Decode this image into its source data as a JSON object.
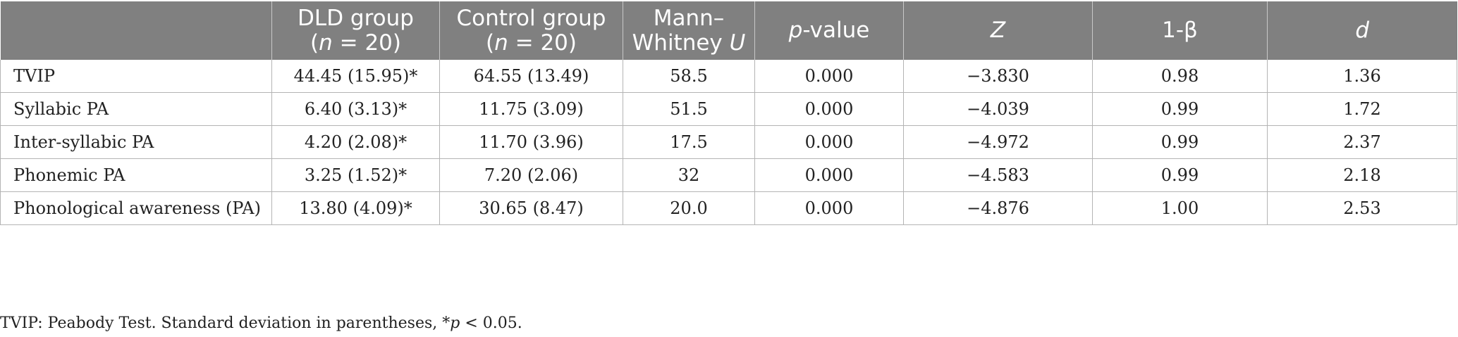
{
  "header": {
    "c0": "",
    "c1_line1": "DLD group",
    "c1_line2_var": "n",
    "c1_line2_rest": " = 20)",
    "c1_line2_open": "(",
    "c2_line1": "Control group",
    "c2_line2_open": "(",
    "c2_line2_var": "n",
    "c2_line2_rest": " = 20)",
    "c3_line1": "Mann–",
    "c3_line2_text": "Whitney ",
    "c3_line2_var": "U",
    "c4_var": "p",
    "c4_rest": "-value",
    "c5": "Z",
    "c6": "1-β",
    "c7": "d"
  },
  "rows": [
    {
      "label": "TVIP",
      "dld": "44.45 (15.95)*",
      "control": "64.55 (13.49)",
      "u": "58.5",
      "p": "0.000",
      "z": "−3.830",
      "power": "0.98",
      "d": "1.36"
    },
    {
      "label": "Syllabic PA",
      "dld": "6.40 (3.13)*",
      "control": "11.75 (3.09)",
      "u": "51.5",
      "p": "0.000",
      "z": "−4.039",
      "power": "0.99",
      "d": "1.72"
    },
    {
      "label": "Inter-syllabic PA",
      "dld": "4.20 (2.08)*",
      "control": "11.70 (3.96)",
      "u": "17.5",
      "p": "0.000",
      "z": "−4.972",
      "power": "0.99",
      "d": "2.37"
    },
    {
      "label": "Phonemic PA",
      "dld": "3.25 (1.52)*",
      "control": "7.20 (2.06)",
      "u": "32",
      "p": "0.000",
      "z": "−4.583",
      "power": "0.99",
      "d": "2.18"
    },
    {
      "label": "Phonological awareness (PA)",
      "dld": "13.80 (4.09)*",
      "control": "30.65 (8.47)",
      "u": "20.0",
      "p": "0.000",
      "z": "−4.876",
      "power": "1.00",
      "d": "2.53"
    }
  ],
  "footnote": {
    "text": "TVIP: Peabody Test. Standard deviation in parentheses, *",
    "var": "p",
    "rest": " < 0.05."
  }
}
